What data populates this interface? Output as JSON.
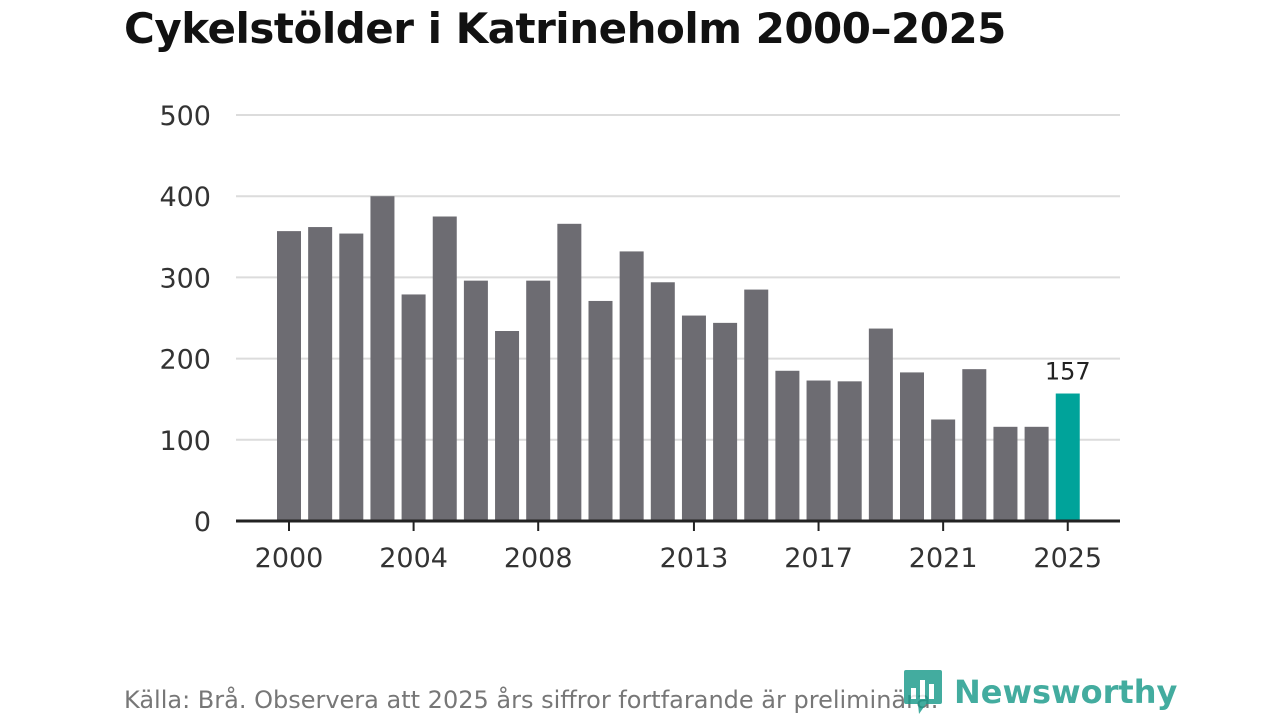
{
  "chart_data": {
    "type": "bar",
    "title": "Cykelstölder i Katrineholm 2000–2025",
    "xlabel": "",
    "ylabel": "",
    "ylim": [
      0,
      500
    ],
    "yticks": [
      0,
      100,
      200,
      300,
      400,
      500
    ],
    "categories": [
      "2000",
      "2001",
      "2002",
      "2003",
      "2004",
      "2005",
      "2006",
      "2007",
      "2008",
      "2009",
      "2010",
      "2011",
      "2012",
      "2013",
      "2014",
      "2015",
      "2016",
      "2017",
      "2018",
      "2019",
      "2020",
      "2021",
      "2022",
      "2023",
      "2024",
      "2025"
    ],
    "values": [
      357,
      362,
      354,
      400,
      279,
      375,
      296,
      234,
      296,
      366,
      271,
      332,
      294,
      253,
      244,
      285,
      185,
      173,
      172,
      237,
      183,
      125,
      187,
      116,
      116,
      157
    ],
    "xtick_labels": [
      "2000",
      "2004",
      "2008",
      "2013",
      "2017",
      "2021",
      "2025"
    ],
    "highlight": {
      "category": "2025",
      "label": "157"
    },
    "colors": {
      "bar": "#6d6c72",
      "highlight": "#00a39a",
      "grid": "#dcdcdc",
      "axis": "#222222"
    }
  },
  "footer": {
    "note": "Källa: Brå. Observera att 2025 års siffror fortfarande är preliminära."
  },
  "brand": {
    "name": "Newsworthy",
    "icon": "newsworthy-logo-icon",
    "color": "#1a9a8a"
  }
}
